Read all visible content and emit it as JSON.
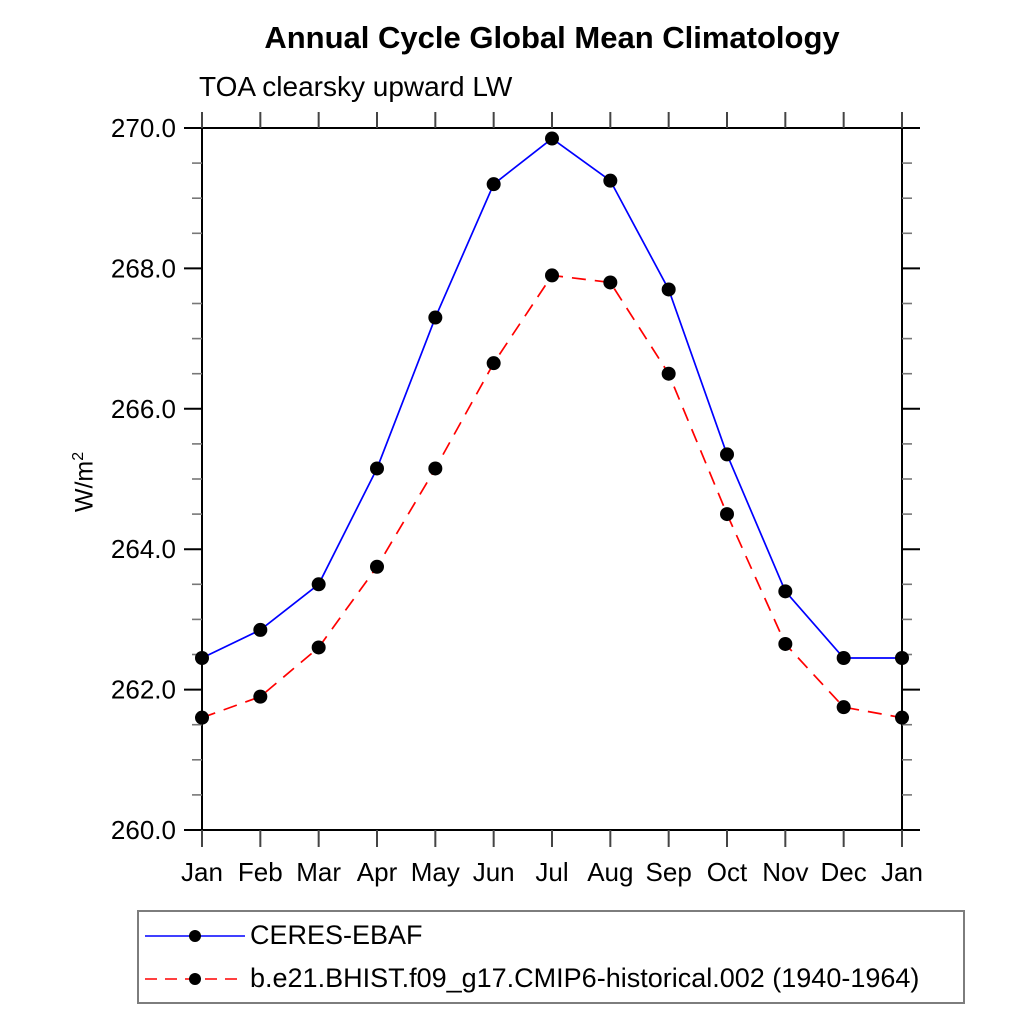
{
  "header": {
    "title": "Annual Cycle Global Mean Climatology",
    "subtitle": "TOA clearsky upward LW"
  },
  "axes": {
    "y_label_base": "W/m",
    "y_label_sup": "2",
    "y_tick_labels": [
      "260.0",
      "262.0",
      "264.0",
      "266.0",
      "268.0",
      "270.0"
    ],
    "x_tick_labels": [
      "Jan",
      "Feb",
      "Mar",
      "Apr",
      "May",
      "Jun",
      "Jul",
      "Aug",
      "Sep",
      "Oct",
      "Nov",
      "Dec",
      "Jan"
    ]
  },
  "legend": {
    "entries": [
      {
        "label": "CERES-EBAF",
        "color": "#0000ff",
        "line_style": "solid",
        "marker": "circle",
        "marker_color": "#000000"
      },
      {
        "label": "b.e21.BHIST.f09_g17.CMIP6-historical.002 (1940-1964)",
        "color": "#ff0000",
        "line_style": "dashed",
        "marker": "circle",
        "marker_color": "#000000"
      }
    ]
  },
  "chart_data": {
    "type": "line",
    "title": "Annual Cycle Global Mean Climatology",
    "subtitle": "TOA clearsky upward LW",
    "xlabel": "",
    "ylabel": "W/m^2",
    "x": [
      "Jan",
      "Feb",
      "Mar",
      "Apr",
      "May",
      "Jun",
      "Jul",
      "Aug",
      "Sep",
      "Oct",
      "Nov",
      "Dec",
      "Jan"
    ],
    "ylim": [
      260.0,
      270.0
    ],
    "ytick_major": 2.0,
    "ytick_minor": 0.5,
    "grid": false,
    "legend_position": "below-bottom-left",
    "series": [
      {
        "name": "CERES-EBAF",
        "color": "#0000ff",
        "line_style": "solid",
        "marker": "circle",
        "marker_color": "#000000",
        "values": [
          262.45,
          262.85,
          263.5,
          265.15,
          267.3,
          269.2,
          269.85,
          269.25,
          267.7,
          265.35,
          263.4,
          262.45,
          262.45
        ]
      },
      {
        "name": "b.e21.BHIST.f09_g17.CMIP6-historical.002 (1940-1964)",
        "color": "#ff0000",
        "line_style": "dashed",
        "marker": "circle",
        "marker_color": "#000000",
        "values": [
          261.6,
          261.9,
          262.6,
          263.75,
          265.15,
          266.65,
          267.9,
          267.8,
          266.5,
          264.5,
          262.65,
          261.75,
          261.6
        ]
      }
    ]
  }
}
